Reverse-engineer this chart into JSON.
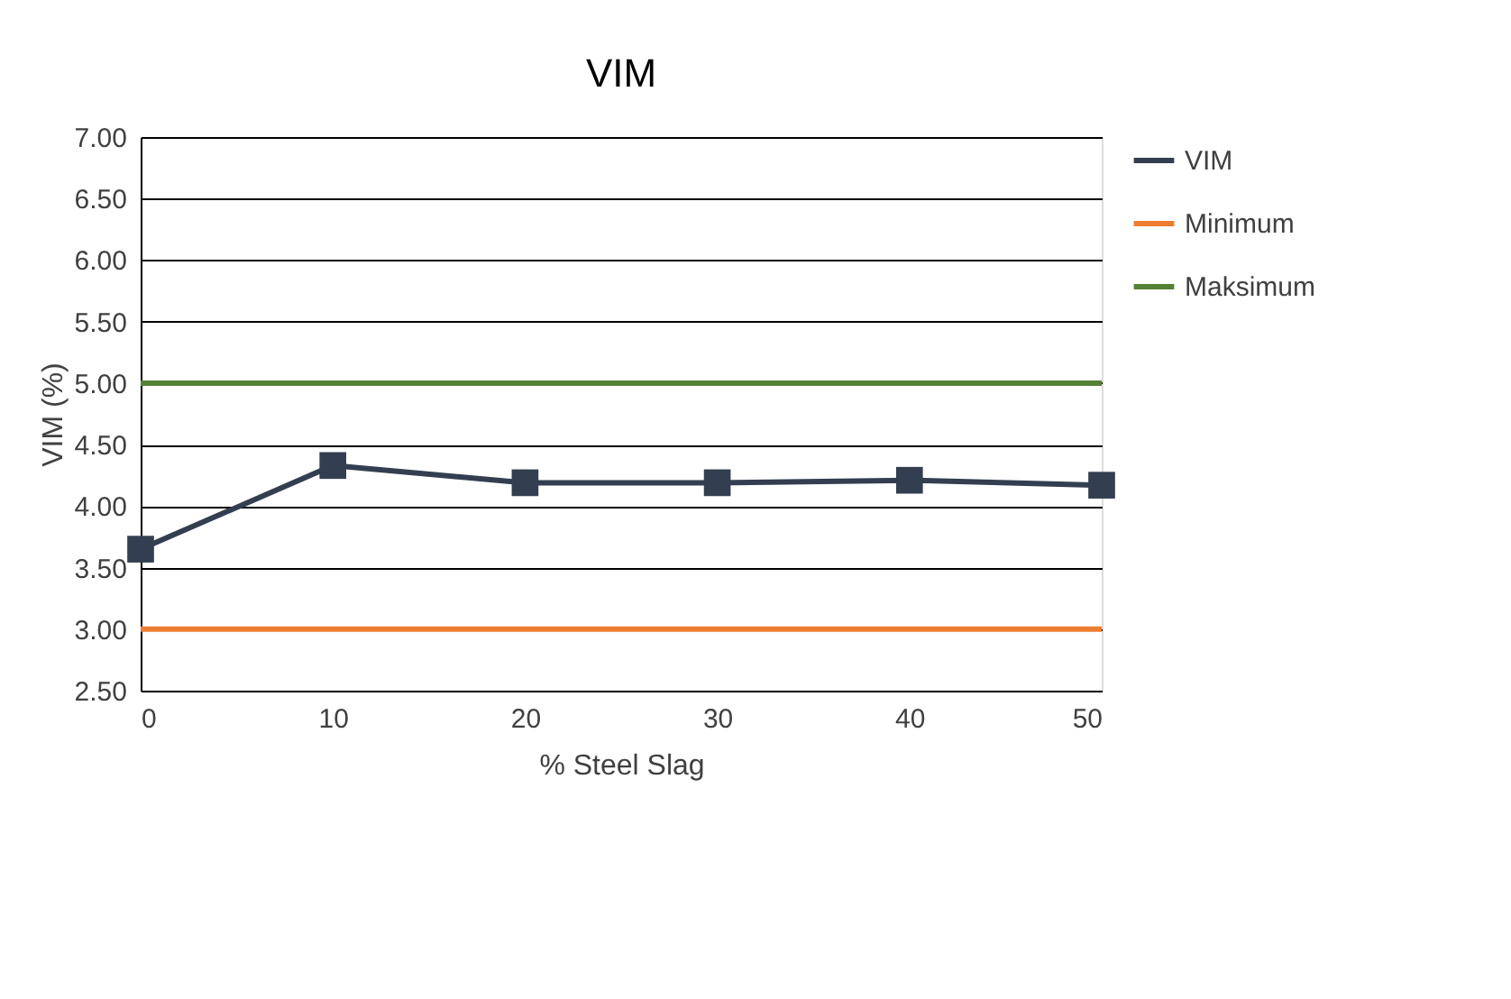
{
  "chart_data": {
    "type": "line",
    "title": "VIM",
    "xlabel": "% Steel Slag",
    "ylabel": "VIM (%)",
    "xlim": [
      0,
      50
    ],
    "xticks": [
      0,
      10,
      20,
      30,
      40,
      50
    ],
    "ylim": [
      2.5,
      7.0
    ],
    "yticks": [
      {
        "value": 2.5,
        "label": "2.50"
      },
      {
        "value": 3.0,
        "label": "3.00"
      },
      {
        "value": 3.5,
        "label": "3.50"
      },
      {
        "value": 4.0,
        "label": "4.00"
      },
      {
        "value": 4.5,
        "label": "4.50"
      },
      {
        "value": 5.0,
        "label": "5.00"
      },
      {
        "value": 5.5,
        "label": "5.50"
      },
      {
        "value": 6.0,
        "label": "6.00"
      },
      {
        "value": 6.5,
        "label": "6.50"
      },
      {
        "value": 7.0,
        "label": "7.00"
      }
    ],
    "grid": "y",
    "legend": "right",
    "series": [
      {
        "name": "VIM",
        "color": "#333f50",
        "marker": "square",
        "x": [
          0,
          10,
          20,
          30,
          40,
          50
        ],
        "values": [
          3.65,
          4.33,
          4.19,
          4.19,
          4.21,
          4.17
        ]
      },
      {
        "name": "Minimum",
        "color": "#ed7d31",
        "marker": "none",
        "x": [
          0,
          50
        ],
        "values": [
          3.0,
          3.0
        ]
      },
      {
        "name": "Maksimum",
        "color": "#548235",
        "marker": "none",
        "x": [
          0,
          50
        ],
        "values": [
          5.0,
          5.0
        ]
      }
    ]
  }
}
